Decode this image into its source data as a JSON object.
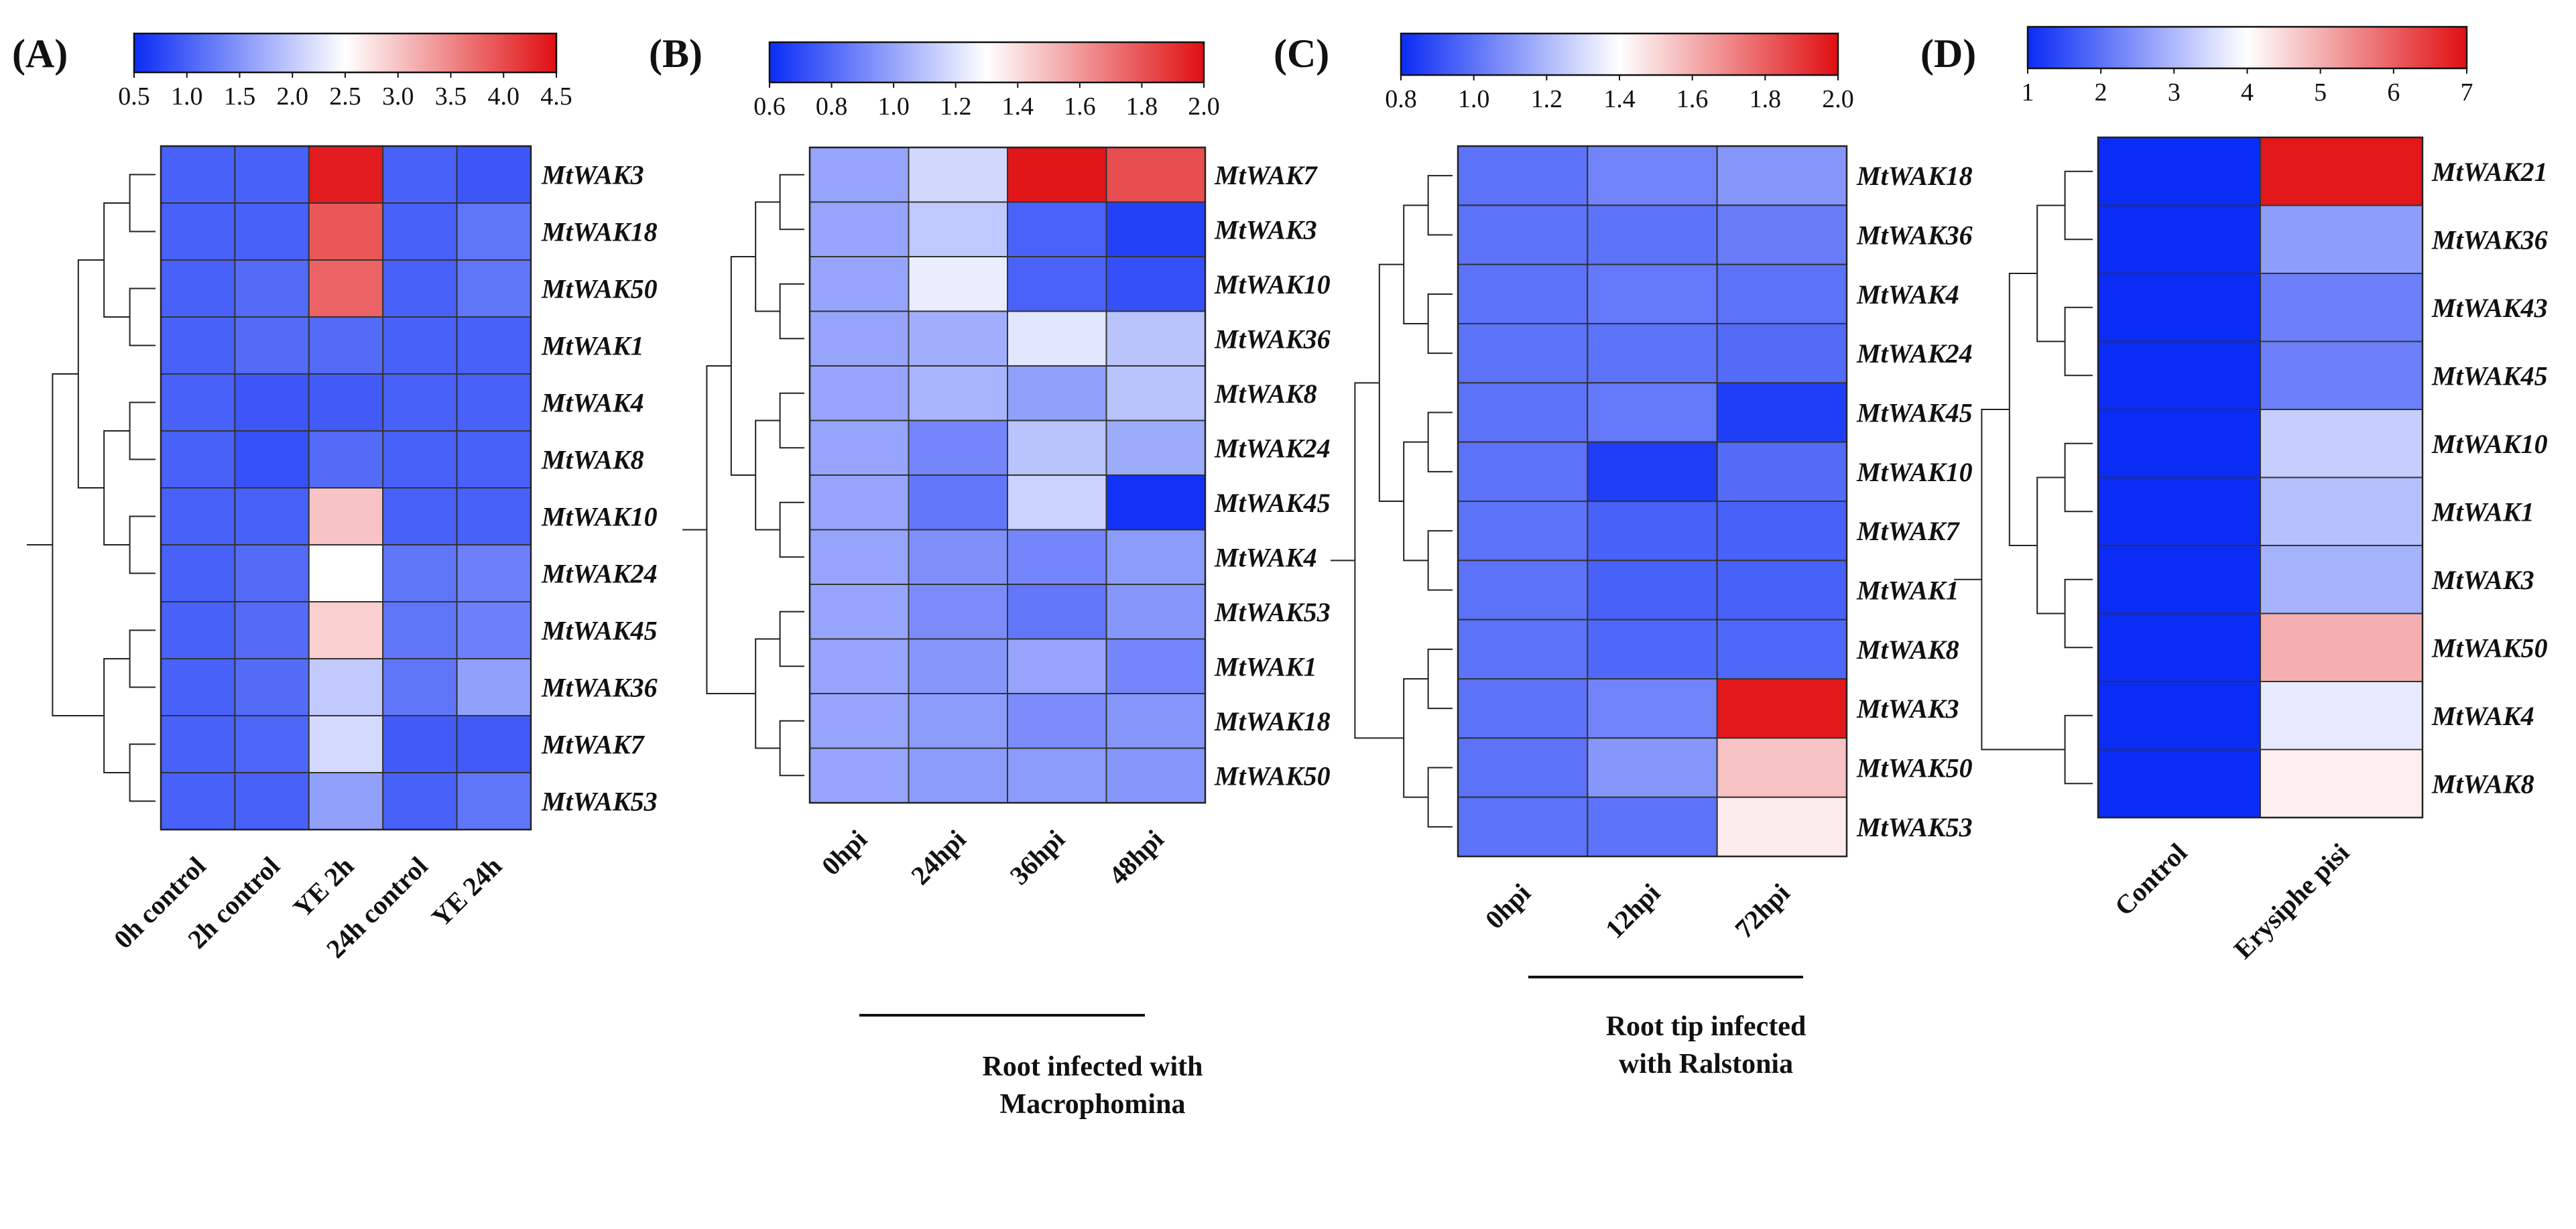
{
  "chart_data": [
    {
      "type": "heatmap",
      "panel_label": "(A)",
      "colorbar": {
        "ticks": [
          "0.5",
          "1.0",
          "1.5",
          "2.0",
          "2.5",
          "3.0",
          "3.5",
          "4.0",
          "4.5"
        ],
        "min": 0.5,
        "max": 4.5,
        "mid": 2.5
      },
      "columns": [
        "0h control",
        "2h control",
        "YE 2h",
        "24h control",
        "YE 24h"
      ],
      "rows": [
        "MtWAK3",
        "MtWAK18",
        "MtWAK50",
        "MtWAK1",
        "MtWAK4",
        "MtWAK8",
        "MtWAK10",
        "MtWAK24",
        "MtWAK45",
        "MtWAK36",
        "MtWAK7",
        "MtWAK53"
      ],
      "values": [
        [
          1.0,
          1.0,
          4.4,
          1.0,
          0.9
        ],
        [
          1.0,
          1.0,
          3.9,
          1.0,
          1.2
        ],
        [
          1.0,
          1.1,
          3.8,
          1.0,
          1.2
        ],
        [
          1.0,
          1.1,
          1.1,
          1.0,
          1.0
        ],
        [
          1.0,
          0.9,
          0.95,
          1.0,
          1.0
        ],
        [
          1.0,
          0.85,
          1.1,
          1.0,
          1.0
        ],
        [
          1.0,
          1.0,
          3.0,
          1.0,
          1.0
        ],
        [
          1.0,
          1.1,
          2.5,
          1.2,
          1.3
        ],
        [
          1.0,
          1.1,
          2.9,
          1.2,
          1.3
        ],
        [
          1.0,
          1.1,
          2.0,
          1.2,
          1.6
        ],
        [
          1.0,
          1.05,
          2.15,
          0.95,
          0.95
        ],
        [
          1.0,
          1.0,
          1.6,
          1.0,
          1.2
        ]
      ],
      "group_label": ""
    },
    {
      "type": "heatmap",
      "panel_label": "(B)",
      "colorbar": {
        "ticks": [
          "0.6",
          "0.8",
          "1.0",
          "1.2",
          "1.4",
          "1.6",
          "1.8",
          "2.0"
        ],
        "min": 0.6,
        "max": 2.0,
        "mid": 1.3
      },
      "columns": [
        "0hpi",
        "24hpi",
        "36hpi",
        "48hpi"
      ],
      "rows": [
        "MtWAK7",
        "MtWAK3",
        "MtWAK10",
        "MtWAK36",
        "MtWAK8",
        "MtWAK24",
        "MtWAK45",
        "MtWAK4",
        "MtWAK53",
        "MtWAK1",
        "MtWAK18",
        "MtWAK50"
      ],
      "values": [
        [
          1.0,
          1.17,
          1.98,
          1.82
        ],
        [
          1.0,
          1.12,
          0.78,
          0.67
        ],
        [
          1.0,
          1.24,
          0.78,
          0.72
        ],
        [
          1.0,
          1.03,
          1.22,
          1.1
        ],
        [
          1.0,
          1.05,
          0.98,
          1.1
        ],
        [
          1.0,
          0.9,
          1.1,
          1.02
        ],
        [
          1.0,
          0.85,
          1.15,
          0.62
        ],
        [
          1.0,
          0.93,
          0.9,
          0.97
        ],
        [
          1.0,
          0.92,
          0.85,
          0.95
        ],
        [
          1.0,
          0.95,
          1.0,
          0.9
        ],
        [
          1.0,
          0.97,
          0.92,
          0.95
        ],
        [
          1.0,
          0.97,
          0.97,
          0.95
        ]
      ],
      "group_label": "Root infected with\nMacrophomina"
    },
    {
      "type": "heatmap",
      "panel_label": "(C)",
      "colorbar": {
        "ticks": [
          "0.8",
          "1.0",
          "1.2",
          "1.4",
          "1.6",
          "1.8",
          "2.0"
        ],
        "min": 0.8,
        "max": 2.0,
        "mid": 1.4
      },
      "columns": [
        "0hpi",
        "12hpi",
        "72hpi"
      ],
      "rows": [
        "MtWAK18",
        "MtWAK36",
        "MtWAK4",
        "MtWAK24",
        "MtWAK45",
        "MtWAK10",
        "MtWAK7",
        "MtWAK1",
        "MtWAK8",
        "MtWAK3",
        "MtWAK50",
        "MtWAK53"
      ],
      "values": [
        [
          1.0,
          1.05,
          1.1
        ],
        [
          1.0,
          1.0,
          1.03
        ],
        [
          1.0,
          1.02,
          1.0
        ],
        [
          1.0,
          1.0,
          0.98
        ],
        [
          1.0,
          1.02,
          0.85
        ],
        [
          1.0,
          0.85,
          0.98
        ],
        [
          1.0,
          0.95,
          0.95
        ],
        [
          1.0,
          0.95,
          0.95
        ],
        [
          1.0,
          0.97,
          0.97
        ],
        [
          1.0,
          1.05,
          1.98
        ],
        [
          1.0,
          1.1,
          1.55
        ],
        [
          1.0,
          1.0,
          1.45
        ]
      ],
      "group_label": "Root tip infected\nwith Ralstonia"
    },
    {
      "type": "heatmap",
      "panel_label": "(D)",
      "colorbar": {
        "ticks": [
          "1",
          "2",
          "3",
          "4",
          "5",
          "6",
          "7"
        ],
        "min": 1,
        "max": 7,
        "mid": 4
      },
      "columns": [
        "Control",
        "Erysiphe pisi"
      ],
      "rows": [
        "MtWAK21",
        "MtWAK36",
        "MtWAK43",
        "MtWAK45",
        "MtWAK10",
        "MtWAK1",
        "MtWAK3",
        "MtWAK50",
        "MtWAK4",
        "MtWAK8"
      ],
      "values": [
        [
          1.0,
          6.9
        ],
        [
          1.0,
          2.6
        ],
        [
          1.0,
          2.2
        ],
        [
          1.0,
          2.2
        ],
        [
          1.0,
          3.3
        ],
        [
          1.0,
          3.1
        ],
        [
          1.0,
          2.9
        ],
        [
          1.0,
          5.0
        ],
        [
          1.0,
          3.7
        ],
        [
          1.0,
          4.2
        ]
      ],
      "group_label": ""
    }
  ],
  "colors": {
    "low": "#0b2cf5",
    "mid": "#ffffff",
    "high": "#e00f12",
    "grid": "#333333"
  }
}
